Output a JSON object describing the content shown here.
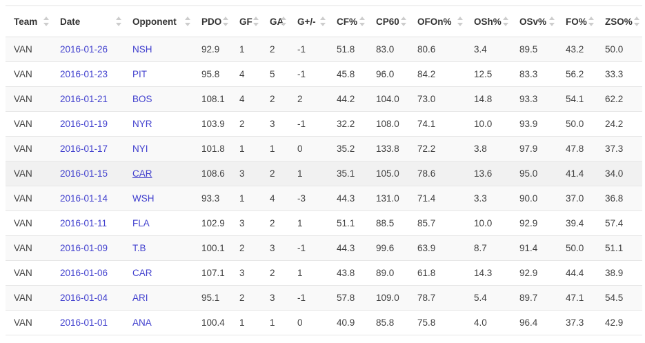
{
  "table": {
    "columns": [
      {
        "key": "team",
        "label": "Team"
      },
      {
        "key": "date",
        "label": "Date"
      },
      {
        "key": "opponent",
        "label": "Opponent"
      },
      {
        "key": "pdo",
        "label": "PDO"
      },
      {
        "key": "gf",
        "label": "GF"
      },
      {
        "key": "ga",
        "label": "GA"
      },
      {
        "key": "gplusminus",
        "label": "G+/-"
      },
      {
        "key": "cfpct",
        "label": "CF%"
      },
      {
        "key": "cp60",
        "label": "CP60"
      },
      {
        "key": "ofonpct",
        "label": "OFOn%"
      },
      {
        "key": "oshpct",
        "label": "OSh%"
      },
      {
        "key": "osvpct",
        "label": "OSv%"
      },
      {
        "key": "fopct",
        "label": "FO%"
      },
      {
        "key": "zsopct",
        "label": "ZSO%"
      }
    ],
    "link_columns": [
      "date",
      "opponent"
    ],
    "hovered_row_index": 5,
    "hovered_link_column": "opponent",
    "colors": {
      "link": "#4140ce",
      "stripe": "#f9f9f9",
      "hover_row": "#f1f1f1",
      "header_text": "#333333",
      "body_text": "#404040",
      "border": "#e2e2e2",
      "sort_icon": "#cdcdcd"
    },
    "sort_icon_name": "sort-up-down-icon",
    "rows": [
      {
        "team": "VAN",
        "date": "2016-01-26",
        "opponent": "NSH",
        "pdo": "92.9",
        "gf": "1",
        "ga": "2",
        "gplusminus": "-1",
        "cfpct": "51.8",
        "cp60": "83.0",
        "ofonpct": "80.6",
        "oshpct": "3.4",
        "osvpct": "89.5",
        "fopct": "43.2",
        "zsopct": "50.0"
      },
      {
        "team": "VAN",
        "date": "2016-01-23",
        "opponent": "PIT",
        "pdo": "95.8",
        "gf": "4",
        "ga": "5",
        "gplusminus": "-1",
        "cfpct": "45.8",
        "cp60": "96.0",
        "ofonpct": "84.2",
        "oshpct": "12.5",
        "osvpct": "83.3",
        "fopct": "56.2",
        "zsopct": "33.3"
      },
      {
        "team": "VAN",
        "date": "2016-01-21",
        "opponent": "BOS",
        "pdo": "108.1",
        "gf": "4",
        "ga": "2",
        "gplusminus": "2",
        "cfpct": "44.2",
        "cp60": "104.0",
        "ofonpct": "73.0",
        "oshpct": "14.8",
        "osvpct": "93.3",
        "fopct": "54.1",
        "zsopct": "62.2"
      },
      {
        "team": "VAN",
        "date": "2016-01-19",
        "opponent": "NYR",
        "pdo": "103.9",
        "gf": "2",
        "ga": "3",
        "gplusminus": "-1",
        "cfpct": "32.2",
        "cp60": "108.0",
        "ofonpct": "74.1",
        "oshpct": "10.0",
        "osvpct": "93.9",
        "fopct": "50.0",
        "zsopct": "24.2"
      },
      {
        "team": "VAN",
        "date": "2016-01-17",
        "opponent": "NYI",
        "pdo": "101.8",
        "gf": "1",
        "ga": "1",
        "gplusminus": "0",
        "cfpct": "35.2",
        "cp60": "133.8",
        "ofonpct": "72.2",
        "oshpct": "3.8",
        "osvpct": "97.9",
        "fopct": "47.8",
        "zsopct": "37.3"
      },
      {
        "team": "VAN",
        "date": "2016-01-15",
        "opponent": "CAR",
        "pdo": "108.6",
        "gf": "3",
        "ga": "2",
        "gplusminus": "1",
        "cfpct": "35.1",
        "cp60": "105.0",
        "ofonpct": "78.6",
        "oshpct": "13.6",
        "osvpct": "95.0",
        "fopct": "41.4",
        "zsopct": "34.0"
      },
      {
        "team": "VAN",
        "date": "2016-01-14",
        "opponent": "WSH",
        "pdo": "93.3",
        "gf": "1",
        "ga": "4",
        "gplusminus": "-3",
        "cfpct": "44.3",
        "cp60": "131.0",
        "ofonpct": "71.4",
        "oshpct": "3.3",
        "osvpct": "90.0",
        "fopct": "37.0",
        "zsopct": "36.8"
      },
      {
        "team": "VAN",
        "date": "2016-01-11",
        "opponent": "FLA",
        "pdo": "102.9",
        "gf": "3",
        "ga": "2",
        "gplusminus": "1",
        "cfpct": "51.1",
        "cp60": "88.5",
        "ofonpct": "85.7",
        "oshpct": "10.0",
        "osvpct": "92.9",
        "fopct": "39.4",
        "zsopct": "57.4"
      },
      {
        "team": "VAN",
        "date": "2016-01-09",
        "opponent": "T.B",
        "pdo": "100.1",
        "gf": "2",
        "ga": "3",
        "gplusminus": "-1",
        "cfpct": "44.3",
        "cp60": "99.6",
        "ofonpct": "63.9",
        "oshpct": "8.7",
        "osvpct": "91.4",
        "fopct": "50.0",
        "zsopct": "51.1"
      },
      {
        "team": "VAN",
        "date": "2016-01-06",
        "opponent": "CAR",
        "pdo": "107.1",
        "gf": "3",
        "ga": "2",
        "gplusminus": "1",
        "cfpct": "43.8",
        "cp60": "89.0",
        "ofonpct": "61.8",
        "oshpct": "14.3",
        "osvpct": "92.9",
        "fopct": "44.4",
        "zsopct": "38.9"
      },
      {
        "team": "VAN",
        "date": "2016-01-04",
        "opponent": "ARI",
        "pdo": "95.1",
        "gf": "2",
        "ga": "3",
        "gplusminus": "-1",
        "cfpct": "57.8",
        "cp60": "109.0",
        "ofonpct": "78.7",
        "oshpct": "5.4",
        "osvpct": "89.7",
        "fopct": "47.1",
        "zsopct": "54.5"
      },
      {
        "team": "VAN",
        "date": "2016-01-01",
        "opponent": "ANA",
        "pdo": "100.4",
        "gf": "1",
        "ga": "1",
        "gplusminus": "0",
        "cfpct": "40.9",
        "cp60": "85.8",
        "ofonpct": "75.8",
        "oshpct": "4.0",
        "osvpct": "96.4",
        "fopct": "37.3",
        "zsopct": "42.9"
      }
    ]
  }
}
